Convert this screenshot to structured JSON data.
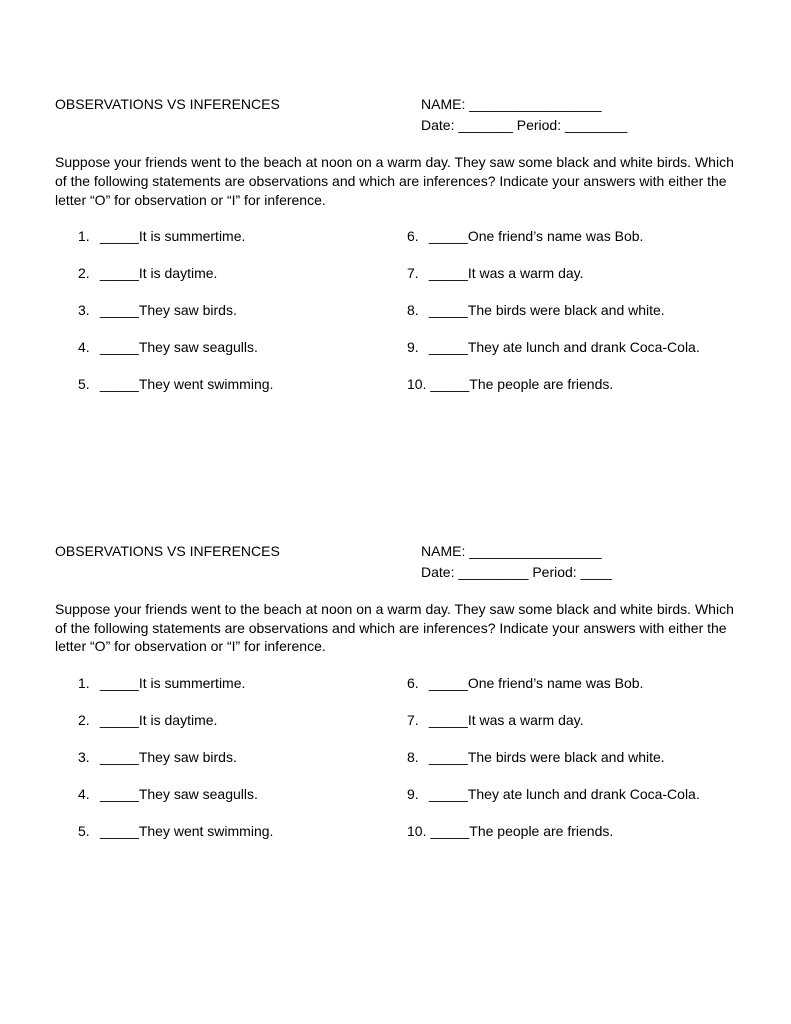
{
  "worksheet": {
    "title": "OBSERVATIONS VS INFERENCES",
    "name_label": "NAME: _________________",
    "date_period_1": "Date: _______ Period: ________",
    "date_period_2": "Date: _________ Period: ____",
    "instructions": "Suppose your friends went to the beach at noon on a warm day.  They saw some black and white birds.  Which of the following statements are observations and which are inferences?  Indicate your answers with either the letter “O” for observation or “I” for inference.",
    "left": [
      {
        "n": "1.",
        "t": "_____It is summertime."
      },
      {
        "n": "2.",
        "t": "_____It is daytime."
      },
      {
        "n": "3.",
        "t": "_____They saw birds."
      },
      {
        "n": "4.",
        "t": "_____They saw seagulls."
      },
      {
        "n": "5.",
        "t": "_____They went swimming."
      }
    ],
    "right": [
      {
        "n": "6.",
        "t": "_____One friend’s name was Bob."
      },
      {
        "n": "7.",
        "t": "_____It was a warm day."
      },
      {
        "n": "8.",
        "t": "_____The birds were black and white."
      },
      {
        "n": "9.",
        "t": "_____They ate lunch and drank Coca-Cola."
      },
      {
        "n": "10.",
        "t": "_____The people are friends."
      }
    ]
  }
}
